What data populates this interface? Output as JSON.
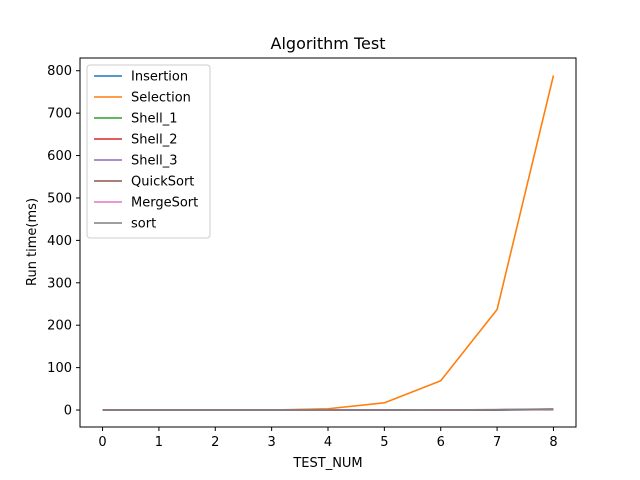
{
  "chart_data": {
    "type": "line",
    "title": "Algorithm Test",
    "xlabel": "TEST_NUM",
    "ylabel": "Run time(ms)",
    "x": [
      0,
      1,
      2,
      3,
      4,
      5,
      6,
      7,
      8
    ],
    "xlim": [
      -0.4,
      8.4
    ],
    "ylim": [
      -40,
      830
    ],
    "xticks": [
      0,
      1,
      2,
      3,
      4,
      5,
      6,
      7,
      8
    ],
    "yticks": [
      0,
      100,
      200,
      300,
      400,
      500,
      600,
      700,
      800
    ],
    "grid": false,
    "legend_position": "top-left",
    "series": [
      {
        "name": "Insertion",
        "color": "#1f77b4",
        "values": [
          0,
          0,
          0,
          0,
          0,
          0,
          0,
          0,
          1
        ]
      },
      {
        "name": "Selection",
        "color": "#ff7f0e",
        "values": [
          0,
          0,
          0,
          0.1,
          3,
          17,
          69,
          237,
          789
        ]
      },
      {
        "name": "Shell_1",
        "color": "#2ca02c",
        "values": [
          0,
          0,
          0,
          0,
          0,
          0,
          0,
          0.5,
          1.5
        ]
      },
      {
        "name": "Shell_2",
        "color": "#d62728",
        "values": [
          0,
          0,
          0,
          0,
          0,
          0,
          0,
          0.5,
          1.5
        ]
      },
      {
        "name": "Shell_3",
        "color": "#9467bd",
        "values": [
          0,
          0,
          0,
          0,
          0,
          0,
          0,
          0.5,
          1.5
        ]
      },
      {
        "name": "QuickSort",
        "color": "#8c564b",
        "values": [
          0,
          0,
          0,
          0,
          0,
          0,
          0,
          0.3,
          1
        ]
      },
      {
        "name": "MergeSort",
        "color": "#e377c2",
        "values": [
          0,
          0,
          0,
          0,
          0,
          0,
          0.3,
          0.8,
          2
        ]
      },
      {
        "name": "sort",
        "color": "#7f7f7f",
        "values": [
          0,
          0,
          0,
          0,
          0,
          0,
          0.3,
          0.8,
          2.5
        ]
      }
    ]
  }
}
